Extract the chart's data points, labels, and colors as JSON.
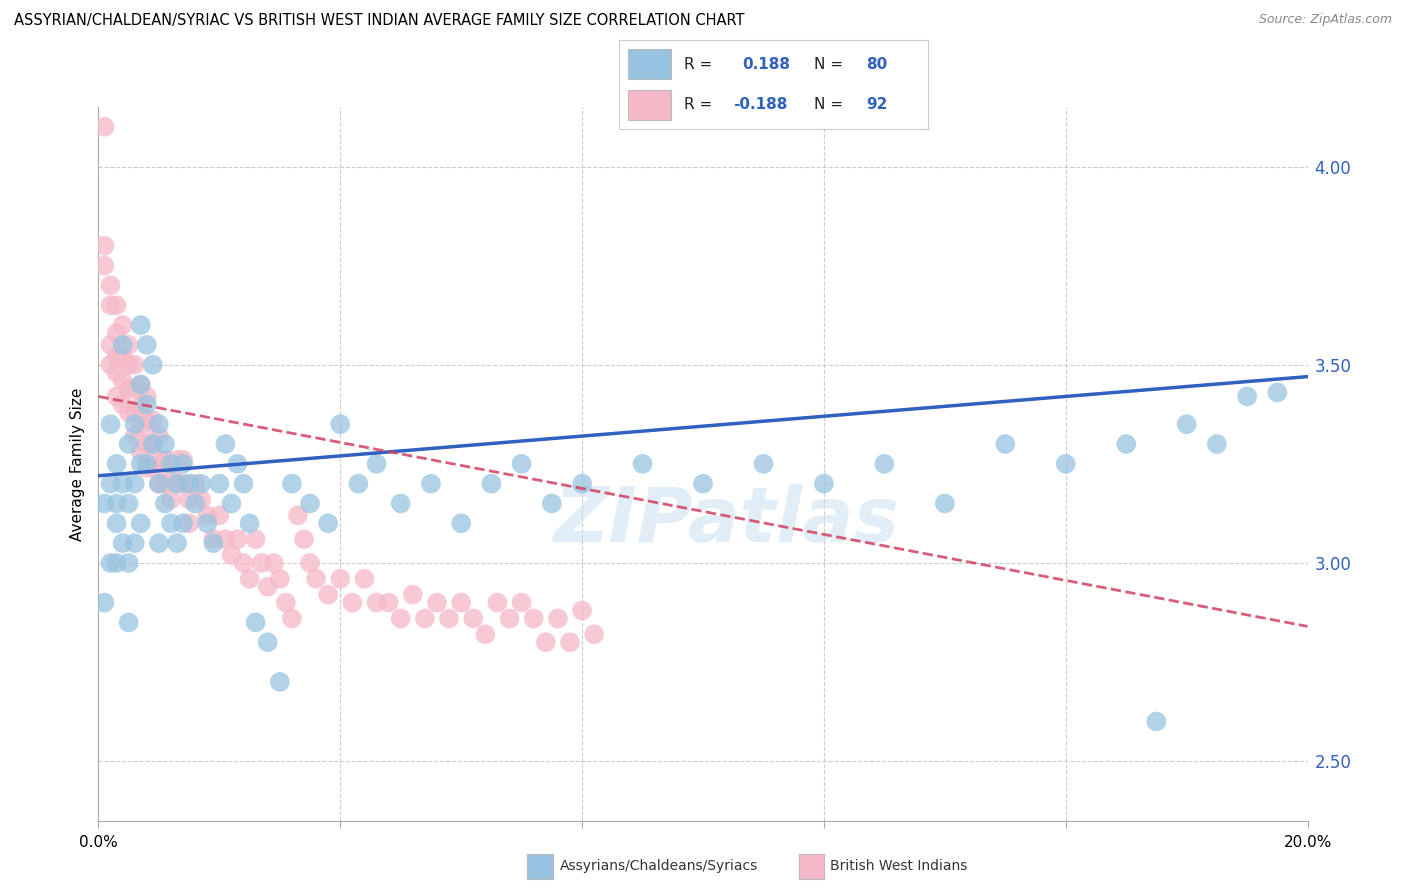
{
  "title": "ASSYRIAN/CHALDEAN/SYRIAC VS BRITISH WEST INDIAN AVERAGE FAMILY SIZE CORRELATION CHART",
  "source": "Source: ZipAtlas.com",
  "ylabel": "Average Family Size",
  "xlim": [
    0.0,
    0.2
  ],
  "ylim": [
    2.35,
    4.15
  ],
  "right_yticks": [
    2.5,
    3.0,
    3.5,
    4.0
  ],
  "right_yticklabels": [
    "2.50",
    "3.00",
    "3.50",
    "4.00"
  ],
  "blue_color": "#97C3E0",
  "pink_color": "#F5B8C8",
  "blue_line_color": "#3060C0",
  "pink_line_color": "#D04060",
  "blue_R": 0.188,
  "blue_N": 80,
  "pink_R": -0.188,
  "pink_N": 92,
  "legend_label_blue": "Assyrians/Chaldeans/Syriacs",
  "legend_label_pink": "British West Indians",
  "watermark": "ZIPatlas",
  "blue_line_x0": 0.0,
  "blue_line_y0": 3.22,
  "blue_line_x1": 0.2,
  "blue_line_y1": 3.47,
  "pink_line_x0": 0.0,
  "pink_line_x1": 0.2,
  "pink_line_y0": 3.42,
  "pink_line_y1": 2.84,
  "blue_scatter_x": [
    0.001,
    0.001,
    0.002,
    0.002,
    0.002,
    0.003,
    0.003,
    0.003,
    0.003,
    0.004,
    0.004,
    0.004,
    0.005,
    0.005,
    0.005,
    0.005,
    0.006,
    0.006,
    0.006,
    0.007,
    0.007,
    0.007,
    0.007,
    0.008,
    0.008,
    0.008,
    0.009,
    0.009,
    0.01,
    0.01,
    0.01,
    0.011,
    0.011,
    0.012,
    0.012,
    0.013,
    0.013,
    0.014,
    0.014,
    0.015,
    0.016,
    0.017,
    0.018,
    0.019,
    0.02,
    0.021,
    0.022,
    0.023,
    0.024,
    0.025,
    0.026,
    0.028,
    0.03,
    0.032,
    0.035,
    0.038,
    0.04,
    0.043,
    0.046,
    0.05,
    0.055,
    0.06,
    0.065,
    0.07,
    0.075,
    0.08,
    0.09,
    0.1,
    0.11,
    0.12,
    0.13,
    0.14,
    0.15,
    0.16,
    0.17,
    0.175,
    0.18,
    0.185,
    0.19,
    0.195
  ],
  "blue_scatter_y": [
    3.15,
    2.9,
    3.2,
    3.0,
    3.35,
    3.1,
    3.25,
    3.0,
    3.15,
    3.55,
    3.2,
    3.05,
    3.3,
    3.15,
    3.0,
    2.85,
    3.35,
    3.2,
    3.05,
    3.6,
    3.45,
    3.25,
    3.1,
    3.55,
    3.4,
    3.25,
    3.5,
    3.3,
    3.35,
    3.2,
    3.05,
    3.3,
    3.15,
    3.25,
    3.1,
    3.2,
    3.05,
    3.25,
    3.1,
    3.2,
    3.15,
    3.2,
    3.1,
    3.05,
    3.2,
    3.3,
    3.15,
    3.25,
    3.2,
    3.1,
    2.85,
    2.8,
    2.7,
    3.2,
    3.15,
    3.1,
    3.35,
    3.2,
    3.25,
    3.15,
    3.2,
    3.1,
    3.2,
    3.25,
    3.15,
    3.2,
    3.25,
    3.2,
    3.25,
    3.2,
    3.25,
    3.15,
    3.3,
    3.25,
    3.3,
    2.6,
    3.35,
    3.3,
    3.42,
    3.43
  ],
  "pink_scatter_x": [
    0.001,
    0.001,
    0.001,
    0.002,
    0.002,
    0.002,
    0.002,
    0.003,
    0.003,
    0.003,
    0.003,
    0.003,
    0.004,
    0.004,
    0.004,
    0.004,
    0.005,
    0.005,
    0.005,
    0.005,
    0.006,
    0.006,
    0.006,
    0.006,
    0.007,
    0.007,
    0.007,
    0.007,
    0.008,
    0.008,
    0.008,
    0.008,
    0.009,
    0.009,
    0.009,
    0.01,
    0.01,
    0.01,
    0.011,
    0.011,
    0.012,
    0.012,
    0.013,
    0.013,
    0.014,
    0.014,
    0.015,
    0.015,
    0.016,
    0.017,
    0.018,
    0.019,
    0.02,
    0.021,
    0.022,
    0.023,
    0.024,
    0.025,
    0.026,
    0.027,
    0.028,
    0.029,
    0.03,
    0.031,
    0.032,
    0.033,
    0.034,
    0.035,
    0.036,
    0.038,
    0.04,
    0.042,
    0.044,
    0.046,
    0.048,
    0.05,
    0.052,
    0.054,
    0.056,
    0.058,
    0.06,
    0.062,
    0.064,
    0.066,
    0.068,
    0.07,
    0.072,
    0.074,
    0.076,
    0.078,
    0.08,
    0.082
  ],
  "pink_scatter_y": [
    4.1,
    3.8,
    3.75,
    3.7,
    3.65,
    3.55,
    3.5,
    3.65,
    3.58,
    3.52,
    3.48,
    3.42,
    3.6,
    3.52,
    3.46,
    3.4,
    3.55,
    3.5,
    3.44,
    3.38,
    3.5,
    3.44,
    3.38,
    3.32,
    3.45,
    3.4,
    3.34,
    3.28,
    3.42,
    3.36,
    3.3,
    3.24,
    3.36,
    3.3,
    3.24,
    3.32,
    3.26,
    3.2,
    3.26,
    3.2,
    3.22,
    3.16,
    3.26,
    3.2,
    3.26,
    3.2,
    3.16,
    3.1,
    3.2,
    3.16,
    3.12,
    3.06,
    3.12,
    3.06,
    3.02,
    3.06,
    3.0,
    2.96,
    3.06,
    3.0,
    2.94,
    3.0,
    2.96,
    2.9,
    2.86,
    3.12,
    3.06,
    3.0,
    2.96,
    2.92,
    2.96,
    2.9,
    2.96,
    2.9,
    2.9,
    2.86,
    2.92,
    2.86,
    2.9,
    2.86,
    2.9,
    2.86,
    2.82,
    2.9,
    2.86,
    2.9,
    2.86,
    2.8,
    2.86,
    2.8,
    2.88,
    2.82
  ]
}
